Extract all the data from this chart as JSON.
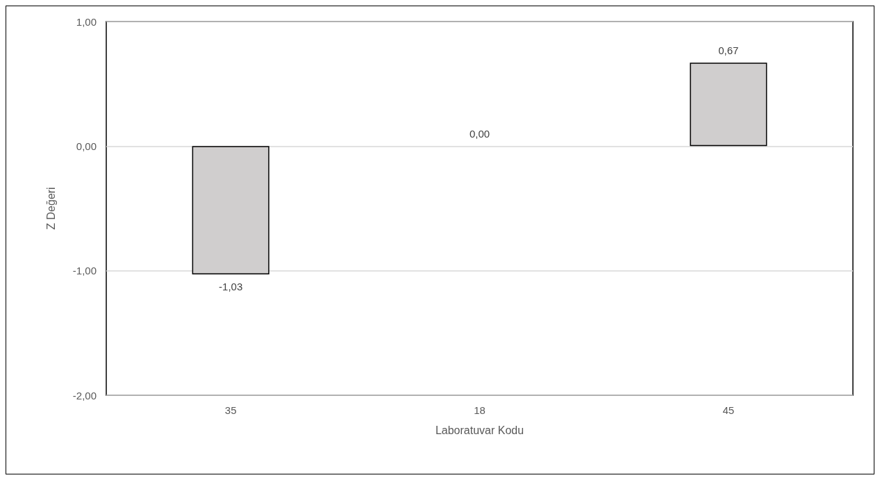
{
  "chart_data": {
    "type": "bar",
    "xlabel": "Laboratuvar Kodu",
    "ylabel": "Z Değeri",
    "categories": [
      "35",
      "18",
      "45"
    ],
    "series": [
      {
        "color": "#d0cece",
        "values": [
          -1.03,
          0,
          0.67
        ],
        "value_labels": [
          "-1,03",
          "0,00",
          "0,67"
        ]
      }
    ],
    "ylim": [
      -2,
      1
    ],
    "yticks": [
      {
        "value": -2,
        "label": "-2,00"
      },
      {
        "value": -1,
        "label": "-1,00"
      },
      {
        "value": 0,
        "label": "0,00"
      },
      {
        "value": 1,
        "label": "1,00"
      }
    ],
    "grid": "y"
  }
}
